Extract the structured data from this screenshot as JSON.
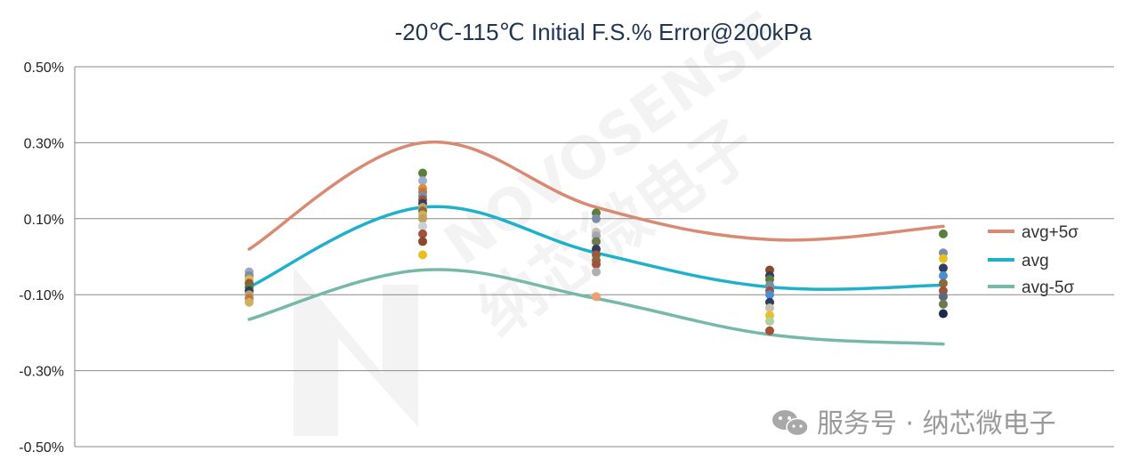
{
  "chart_data": {
    "type": "line",
    "title": "-20℃-115℃ Initial F.S.% Error@200kPa",
    "xlabel": "",
    "ylabel": "",
    "x_positions": [
      1,
      2,
      3,
      4,
      5
    ],
    "ylim": [
      -0.5,
      0.5
    ],
    "yticks": [
      0.5,
      0.3,
      0.1,
      -0.1,
      -0.3,
      -0.5
    ],
    "ytick_labels": [
      "0.50%",
      "0.30%",
      "0.10%",
      "-0.10%",
      "-0.30%",
      "-0.50%"
    ],
    "grid": true,
    "legend_position": "right",
    "series": [
      {
        "name": "avg+5σ",
        "color": "#d98a72",
        "values": [
          0.02,
          0.3,
          0.13,
          0.045,
          0.08
        ]
      },
      {
        "name": "avg",
        "color": "#1fb0cc",
        "values": [
          -0.08,
          0.13,
          0.01,
          -0.08,
          -0.075
        ]
      },
      {
        "name": "avg-5σ",
        "color": "#77b8a8",
        "values": [
          -0.165,
          -0.035,
          -0.11,
          -0.205,
          -0.23
        ]
      }
    ],
    "scatter_points": [
      {
        "x": 1,
        "y": -0.04,
        "color": "#9aa7c0"
      },
      {
        "x": 1,
        "y": -0.05,
        "color": "#7a8ea8"
      },
      {
        "x": 1,
        "y": -0.06,
        "color": "#e0b84a"
      },
      {
        "x": 1,
        "y": -0.07,
        "color": "#a0523d"
      },
      {
        "x": 1,
        "y": -0.08,
        "color": "#5a7d3a"
      },
      {
        "x": 1,
        "y": -0.09,
        "color": "#2f3e5c"
      },
      {
        "x": 1,
        "y": -0.1,
        "color": "#b8a070"
      },
      {
        "x": 1,
        "y": -0.11,
        "color": "#c07840"
      },
      {
        "x": 1,
        "y": -0.12,
        "color": "#d0b060"
      },
      {
        "x": 2,
        "y": 0.22,
        "color": "#5a7d3a"
      },
      {
        "x": 2,
        "y": 0.2,
        "color": "#9ab0d0"
      },
      {
        "x": 2,
        "y": 0.18,
        "color": "#e08a3a"
      },
      {
        "x": 2,
        "y": 0.17,
        "color": "#c07840"
      },
      {
        "x": 2,
        "y": 0.16,
        "color": "#7a8ea8"
      },
      {
        "x": 2,
        "y": 0.15,
        "color": "#a0523d"
      },
      {
        "x": 2,
        "y": 0.14,
        "color": "#2f3e5c"
      },
      {
        "x": 2,
        "y": 0.13,
        "color": "#b8a070"
      },
      {
        "x": 2,
        "y": 0.12,
        "color": "#8a6a3a"
      },
      {
        "x": 2,
        "y": 0.11,
        "color": "#d0b060"
      },
      {
        "x": 2,
        "y": 0.1,
        "color": "#c0a060"
      },
      {
        "x": 2,
        "y": 0.08,
        "color": "#c8d0d8"
      },
      {
        "x": 2,
        "y": 0.06,
        "color": "#a0523d"
      },
      {
        "x": 2,
        "y": 0.04,
        "color": "#8a4a2a"
      },
      {
        "x": 2,
        "y": 0.005,
        "color": "#e8c020"
      },
      {
        "x": 3,
        "y": 0.115,
        "color": "#5a7d3a"
      },
      {
        "x": 3,
        "y": 0.1,
        "color": "#7a8ea8"
      },
      {
        "x": 3,
        "y": 0.065,
        "color": "#c8c0b0"
      },
      {
        "x": 3,
        "y": 0.055,
        "color": "#a0a8b8"
      },
      {
        "x": 3,
        "y": 0.04,
        "color": "#6a7a4a"
      },
      {
        "x": 3,
        "y": 0.02,
        "color": "#2f3e5c"
      },
      {
        "x": 3,
        "y": 0.005,
        "color": "#9a5a3a"
      },
      {
        "x": 3,
        "y": -0.01,
        "color": "#8a6a3a"
      },
      {
        "x": 3,
        "y": -0.02,
        "color": "#a0523d"
      },
      {
        "x": 3,
        "y": -0.04,
        "color": "#b0b0b0"
      },
      {
        "x": 3,
        "y": -0.105,
        "color": "#f0a070"
      },
      {
        "x": 4,
        "y": -0.035,
        "color": "#8a4a2a"
      },
      {
        "x": 4,
        "y": -0.05,
        "color": "#2f3e5c"
      },
      {
        "x": 4,
        "y": -0.06,
        "color": "#5a7d3a"
      },
      {
        "x": 4,
        "y": -0.075,
        "color": "#7a8ea8"
      },
      {
        "x": 4,
        "y": -0.09,
        "color": "#a0523d"
      },
      {
        "x": 4,
        "y": -0.1,
        "color": "#4a90d0"
      },
      {
        "x": 4,
        "y": -0.12,
        "color": "#2f3e5c"
      },
      {
        "x": 4,
        "y": -0.135,
        "color": "#c8c0b0"
      },
      {
        "x": 4,
        "y": -0.155,
        "color": "#e8c020"
      },
      {
        "x": 4,
        "y": -0.17,
        "color": "#b0d0a0"
      },
      {
        "x": 4,
        "y": -0.195,
        "color": "#a0523d"
      },
      {
        "x": 5,
        "y": 0.06,
        "color": "#5a7d3a"
      },
      {
        "x": 5,
        "y": 0.01,
        "color": "#7a8ea8"
      },
      {
        "x": 5,
        "y": -0.005,
        "color": "#e8c020"
      },
      {
        "x": 5,
        "y": -0.03,
        "color": "#2f3e5c"
      },
      {
        "x": 5,
        "y": -0.05,
        "color": "#4a90d0"
      },
      {
        "x": 5,
        "y": -0.07,
        "color": "#8a6a3a"
      },
      {
        "x": 5,
        "y": -0.09,
        "color": "#a0523d"
      },
      {
        "x": 5,
        "y": -0.105,
        "color": "#5a6a7a"
      },
      {
        "x": 5,
        "y": -0.125,
        "color": "#6a7a4a"
      },
      {
        "x": 5,
        "y": -0.15,
        "color": "#1a2a4a"
      }
    ]
  },
  "watermark": {
    "brand": "NOVOSENSE",
    "chinese": "纳芯微电子"
  },
  "footer": {
    "text": "服务号 · 纳芯微电子",
    "icon": "wechat-icon"
  }
}
